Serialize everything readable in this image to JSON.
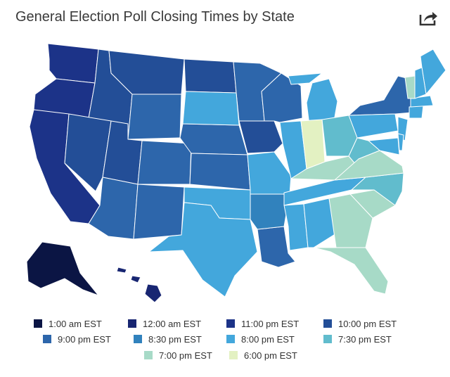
{
  "title": "General Election Poll Closing Times by State",
  "share_icon": "share-icon",
  "legend": [
    {
      "label": "1:00 am EST",
      "color": "#0b1544"
    },
    {
      "label": "12:00 am EST",
      "color": "#182672"
    },
    {
      "label": "11:00 pm EST",
      "color": "#1c3388"
    },
    {
      "label": "10:00 pm EST",
      "color": "#234e97"
    },
    {
      "label": "9:00 pm EST",
      "color": "#2d66ab"
    },
    {
      "label": "8:30 pm EST",
      "color": "#3182bd"
    },
    {
      "label": "8:00 pm EST",
      "color": "#43a7dc"
    },
    {
      "label": "7:30 pm EST",
      "color": "#61bccd"
    },
    {
      "label": "7:00 pm EST",
      "color": "#a7dac7"
    },
    {
      "label": "6:00 pm EST",
      "color": "#e3f1c2"
    }
  ],
  "states": [
    {
      "abbr": "WA",
      "time": "11:00 pm EST"
    },
    {
      "abbr": "OR",
      "time": "11:00 pm EST"
    },
    {
      "abbr": "CA",
      "time": "11:00 pm EST"
    },
    {
      "abbr": "ID",
      "time": "10:00 pm EST"
    },
    {
      "abbr": "NV",
      "time": "10:00 pm EST"
    },
    {
      "abbr": "UT",
      "time": "10:00 pm EST"
    },
    {
      "abbr": "MT",
      "time": "10:00 pm EST"
    },
    {
      "abbr": "ND",
      "time": "10:00 pm EST"
    },
    {
      "abbr": "AZ",
      "time": "9:00 pm EST"
    },
    {
      "abbr": "NM",
      "time": "9:00 pm EST"
    },
    {
      "abbr": "CO",
      "time": "9:00 pm EST"
    },
    {
      "abbr": "WY",
      "time": "9:00 pm EST"
    },
    {
      "abbr": "NE",
      "time": "9:00 pm EST"
    },
    {
      "abbr": "KS",
      "time": "9:00 pm EST"
    },
    {
      "abbr": "MN",
      "time": "9:00 pm EST"
    },
    {
      "abbr": "WI",
      "time": "9:00 pm EST"
    },
    {
      "abbr": "LA",
      "time": "9:00 pm EST"
    },
    {
      "abbr": "NY",
      "time": "9:00 pm EST"
    },
    {
      "abbr": "SD",
      "time": "8:00 pm EST"
    },
    {
      "abbr": "IA",
      "time": "10:00 pm EST"
    },
    {
      "abbr": "AR",
      "time": "8:30 pm EST"
    },
    {
      "abbr": "OK",
      "time": "8:00 pm EST"
    },
    {
      "abbr": "TX",
      "time": "8:00 pm EST"
    },
    {
      "abbr": "MO",
      "time": "8:00 pm EST"
    },
    {
      "abbr": "IL",
      "time": "8:00 pm EST"
    },
    {
      "abbr": "MI",
      "time": "8:00 pm EST"
    },
    {
      "abbr": "TN",
      "time": "8:00 pm EST"
    },
    {
      "abbr": "MS",
      "time": "8:00 pm EST"
    },
    {
      "abbr": "AL",
      "time": "8:00 pm EST"
    },
    {
      "abbr": "PA",
      "time": "8:00 pm EST"
    },
    {
      "abbr": "NJ",
      "time": "8:00 pm EST"
    },
    {
      "abbr": "MD",
      "time": "8:00 pm EST"
    },
    {
      "abbr": "DE",
      "time": "8:00 pm EST"
    },
    {
      "abbr": "CT",
      "time": "8:00 pm EST"
    },
    {
      "abbr": "MA",
      "time": "8:00 pm EST"
    },
    {
      "abbr": "ME",
      "time": "8:00 pm EST"
    },
    {
      "abbr": "OH",
      "time": "7:30 pm EST"
    },
    {
      "abbr": "WV",
      "time": "7:30 pm EST"
    },
    {
      "abbr": "NC",
      "time": "7:30 pm EST"
    },
    {
      "abbr": "KY",
      "time": "7:00 pm EST"
    },
    {
      "abbr": "VA",
      "time": "7:00 pm EST"
    },
    {
      "abbr": "SC",
      "time": "7:00 pm EST"
    },
    {
      "abbr": "GA",
      "time": "7:00 pm EST"
    },
    {
      "abbr": "FL",
      "time": "7:00 pm EST"
    },
    {
      "abbr": "VT",
      "time": "7:00 pm EST"
    },
    {
      "abbr": "NH",
      "time": "8:00 pm EST"
    },
    {
      "abbr": "IN",
      "time": "6:00 pm EST"
    },
    {
      "abbr": "AK",
      "time": "1:00 am EST"
    },
    {
      "abbr": "HI",
      "time": "12:00 am EST"
    }
  ]
}
